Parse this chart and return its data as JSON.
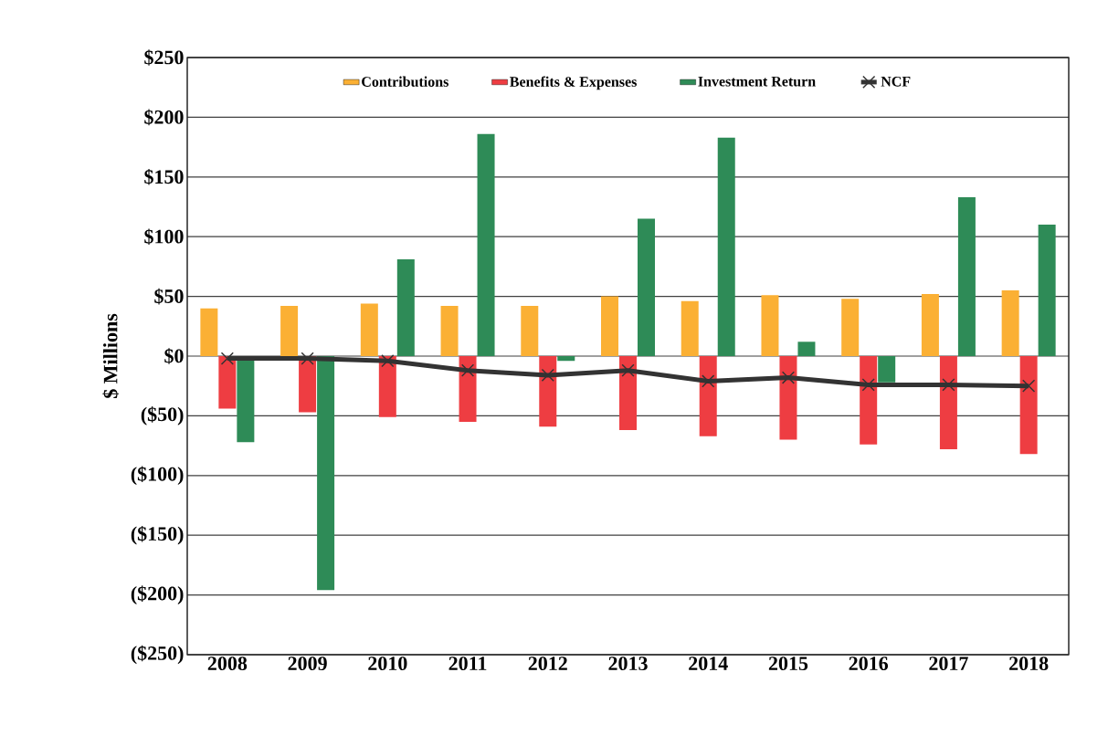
{
  "chart_data": {
    "type": "bar",
    "ylabel": "$ Millions",
    "categories": [
      "2008",
      "2009",
      "2010",
      "2011",
      "2012",
      "2013",
      "2014",
      "2015",
      "2016",
      "2017",
      "2018"
    ],
    "series": [
      {
        "name": "Contributions",
        "color": "#fbb034",
        "values": [
          40,
          42,
          44,
          42,
          42,
          50,
          46,
          51,
          48,
          52,
          55
        ]
      },
      {
        "name": "Benefits & Expenses",
        "color": "#ee3d42",
        "values": [
          -44,
          -47,
          -51,
          -55,
          -59,
          -62,
          -67,
          -70,
          -74,
          -78,
          -82
        ]
      },
      {
        "name": "Investment Return",
        "color": "#2e8b57",
        "values": [
          -72,
          -196,
          81,
          186,
          -4,
          115,
          183,
          12,
          -22,
          133,
          110
        ]
      },
      {
        "name": "NCF",
        "type": "line",
        "color": "#333333",
        "marker": "cross",
        "values": [
          -2,
          -2,
          -4,
          -12,
          -16,
          -12,
          -21,
          -18,
          -24,
          -24,
          -25
        ]
      }
    ],
    "ylim": [
      -250,
      250
    ],
    "yticks": [
      {
        "value": 250,
        "label": "$250"
      },
      {
        "value": 200,
        "label": "$200"
      },
      {
        "value": 150,
        "label": "$150"
      },
      {
        "value": 100,
        "label": "$100"
      },
      {
        "value": 50,
        "label": "$50"
      },
      {
        "value": 0,
        "label": "$0"
      },
      {
        "value": -50,
        "label": "($50)"
      },
      {
        "value": -100,
        "label": "($100)"
      },
      {
        "value": -150,
        "label": "($150)"
      },
      {
        "value": -200,
        "label": "($200)"
      },
      {
        "value": -250,
        "label": "($250)"
      }
    ],
    "grid": "y",
    "legend": "top"
  }
}
